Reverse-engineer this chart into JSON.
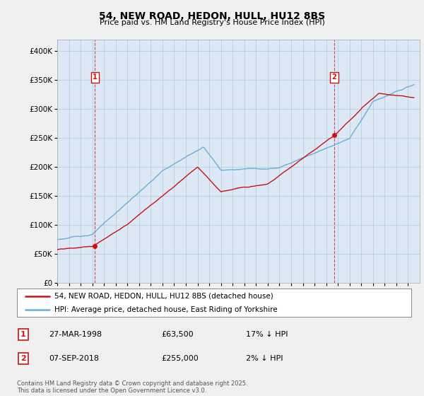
{
  "title": "54, NEW ROAD, HEDON, HULL, HU12 8BS",
  "subtitle": "Price paid vs. HM Land Registry's House Price Index (HPI)",
  "footer": "Contains HM Land Registry data © Crown copyright and database right 2025.\nThis data is licensed under the Open Government Licence v3.0.",
  "legend_line1": "54, NEW ROAD, HEDON, HULL, HU12 8BS (detached house)",
  "legend_line2": "HPI: Average price, detached house, East Riding of Yorkshire",
  "table": [
    {
      "num": "1",
      "date": "27-MAR-1998",
      "price": "£63,500",
      "hpi": "17% ↓ HPI"
    },
    {
      "num": "2",
      "date": "07-SEP-2018",
      "price": "£255,000",
      "hpi": "2% ↓ HPI"
    }
  ],
  "sale1_x": 1998.23,
  "sale1_y": 63500,
  "sale2_x": 2018.69,
  "sale2_y": 255000,
  "vline1_x": 1998.23,
  "vline2_x": 2018.69,
  "ylim": [
    0,
    420000
  ],
  "xlim_start": 1995,
  "xlim_end": 2026,
  "hpi_color": "#6dadd6",
  "sale_color": "#cc1111",
  "vline_color": "#cc2222",
  "background_color": "#f0f0f0",
  "plot_bg_color": "#dce8f5"
}
